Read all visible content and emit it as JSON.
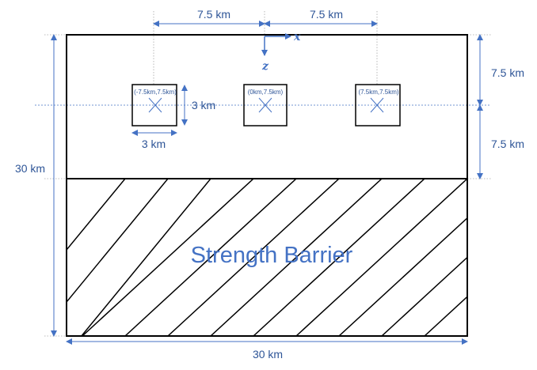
{
  "diagram": {
    "colors": {
      "outline": "#000000",
      "dimension": "#4472c4",
      "dimension_text": "#2e5597",
      "guide": "#a6a6a6"
    },
    "labels": {
      "top_left_spacing": "7.5 km",
      "top_right_spacing": "7.5 km",
      "right_upper_depth": "7.5 km",
      "right_lower_depth": "7.5 km",
      "left_height": "30 km",
      "bottom_width": "30 km",
      "square_height": "3 km",
      "square_width": "3 km",
      "barrier": "Strength Barrier"
    },
    "axes": {
      "x_label": "x",
      "z_label": "z"
    },
    "patches": [
      {
        "label": "(-7.5km,7.5km)"
      },
      {
        "label": "(0km,7.5km)"
      },
      {
        "label": "(7.5km,7.5km)"
      }
    ]
  }
}
